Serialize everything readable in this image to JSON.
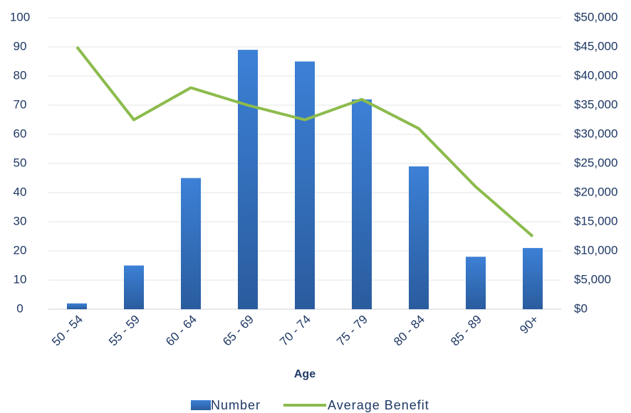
{
  "chart_data": {
    "type": "bar",
    "x_label": "Age",
    "categories": [
      "50 - 54",
      "55 - 59",
      "60 - 64",
      "65 - 69",
      "70 - 74",
      "75 - 79",
      "80 - 84",
      "85 - 89",
      "90+"
    ],
    "series": [
      {
        "name": "Number",
        "type": "bar",
        "color": "#3474c4",
        "values": [
          2,
          15,
          45,
          89,
          85,
          72,
          49,
          18,
          21
        ]
      },
      {
        "name": "Average Benefit",
        "type": "line",
        "axis": "y2",
        "color": "#8cbb4c",
        "values": [
          45000,
          32500,
          38000,
          35000,
          32500,
          36000,
          31000,
          21000,
          12500
        ]
      }
    ],
    "ylim": [
      0,
      100
    ],
    "yticks": [
      0,
      10,
      20,
      30,
      40,
      50,
      60,
      70,
      80,
      90,
      100
    ],
    "y2lim": [
      0,
      50000
    ],
    "y2ticks": [
      {
        "value": 0,
        "label": "$0"
      },
      {
        "value": 5000,
        "label": "$5,000"
      },
      {
        "value": 10000,
        "label": "$10,000"
      },
      {
        "value": 15000,
        "label": "$15,000"
      },
      {
        "value": 20000,
        "label": "$20,000"
      },
      {
        "value": 25000,
        "label": "$25,000"
      },
      {
        "value": 30000,
        "label": "$30,000"
      },
      {
        "value": 35000,
        "label": "$35,000"
      },
      {
        "value": 40000,
        "label": "$40,000"
      },
      {
        "value": 45000,
        "label": "$45,000"
      },
      {
        "value": 50000,
        "label": "$50,000"
      }
    ],
    "grid": true,
    "legend": "bottom"
  }
}
